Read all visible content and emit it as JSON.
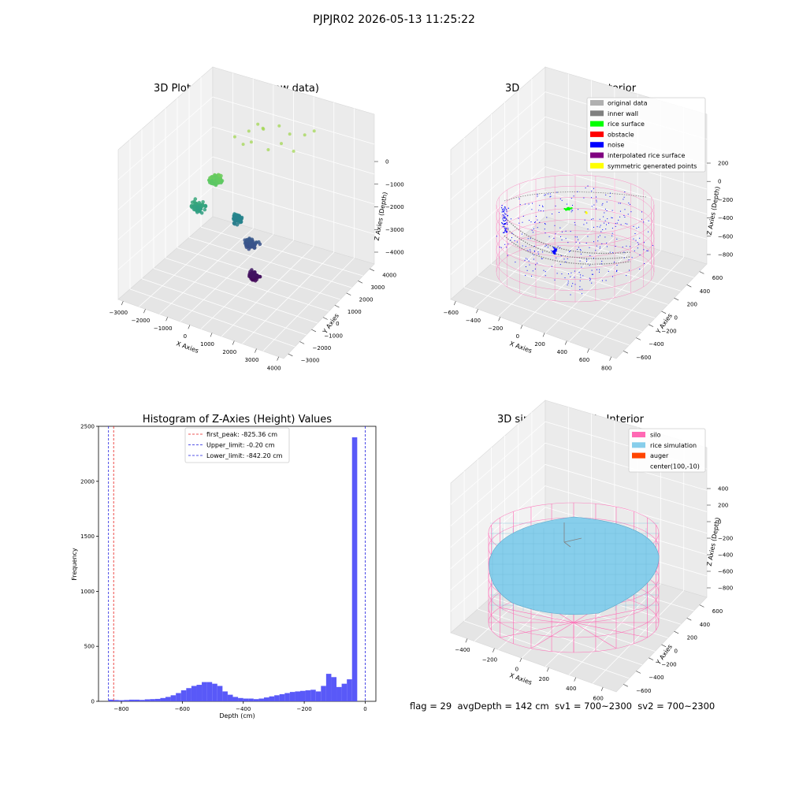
{
  "figure": {
    "suptitle": "PJPJR02 2026-05-13 11:25:22",
    "stats": {
      "flag": "flag = 29",
      "avg_depth": "avgDepth = 142 cm",
      "sv1": "sv1 = 700~2300",
      "sv2": "sv2 = 700~2300"
    },
    "colors": {
      "hist_bar": "#5050f8",
      "first_peak_line": "#e8201c",
      "limit_lines": "#1c1ce0",
      "silo_wire": "#ff69b4",
      "rice_surface": "#87ceeb",
      "noise": "#0000ff",
      "original_data": "#b0b0b0",
      "inner_wall": "#808080",
      "rice_surface_class": "#00ff00",
      "obstacle": "#ff0000",
      "interpolated": "#800080",
      "symmetric": "#ffff00",
      "auger": "#ff4500"
    }
  },
  "chart_data": [
    {
      "id": "raw",
      "type": "scatter",
      "projection": "3d",
      "title": "3D Plot of Silo Interior(row data)",
      "xlabel": "X Axies",
      "ylabel": "Y Axies",
      "zlabel": "Z Axies (Depth)",
      "x_ticks": [
        "−3000",
        "−2000",
        "−1000",
        "0",
        "1000",
        "2000",
        "3000",
        "4000"
      ],
      "y_ticks": [
        "−3000",
        "−2000",
        "−1000",
        "0",
        "1000",
        "2000",
        "3000",
        "4000"
      ],
      "z_ticks": [
        "0",
        "−1000",
        "−2000",
        "−3000",
        "−4000"
      ],
      "colormap": "viridis",
      "clusters": [
        {
          "x": -300,
          "y": -500,
          "z": -1100,
          "spread": 300,
          "n": 120
        },
        {
          "x": -800,
          "y": -900,
          "z": -1900,
          "spread": 350,
          "n": 90
        },
        {
          "x": 100,
          "y": 400,
          "z": -2500,
          "spread": 300,
          "n": 60
        },
        {
          "x": 400,
          "y": 800,
          "z": -3300,
          "spread": 350,
          "n": 60
        },
        {
          "x": 500,
          "y": 900,
          "z": -4300,
          "spread": 250,
          "n": 70
        }
      ]
    },
    {
      "id": "classify",
      "type": "scatter",
      "projection": "3d",
      "title": "3D classify of Silo Interior",
      "xlabel": "X Axies",
      "ylabel": "Y Axies",
      "zlabel": "Z Axies (Depth)",
      "x_ticks": [
        "−600",
        "−400",
        "−200",
        "0",
        "200",
        "400",
        "600",
        "800"
      ],
      "y_ticks": [
        "−600",
        "−400",
        "−200",
        "0",
        "200",
        "400",
        "600"
      ],
      "z_ticks": [
        "200",
        "0",
        "−200",
        "−400",
        "−600",
        "−800"
      ],
      "legend": [
        "original data",
        "inner wall",
        "rice surface",
        "obstacle",
        "noise",
        "interpolated rice surface",
        "symmetric generated points"
      ]
    },
    {
      "id": "histogram",
      "type": "bar",
      "title": "Histogram of Z-Axies (Height) Values",
      "xlabel": "Depth (cm)",
      "ylabel": "Frequency",
      "xlim": [
        -875,
        35
      ],
      "ylim": [
        0,
        2500
      ],
      "x_ticks": [
        "−800",
        "−600",
        "−400",
        "−200",
        "0"
      ],
      "x_tick_values": [
        -800,
        -600,
        -400,
        -200,
        0
      ],
      "y_ticks": [
        "0",
        "500",
        "1000",
        "1500",
        "2000",
        "2500"
      ],
      "bin_width": 17,
      "bin_start": -842.2,
      "values": [
        15,
        12,
        10,
        12,
        15,
        15,
        13,
        18,
        20,
        22,
        30,
        40,
        55,
        75,
        100,
        120,
        140,
        150,
        175,
        175,
        160,
        140,
        90,
        60,
        40,
        30,
        25,
        25,
        20,
        25,
        35,
        45,
        55,
        65,
        75,
        85,
        90,
        95,
        100,
        105,
        90,
        140,
        250,
        220,
        130,
        160,
        200,
        2400
      ],
      "lines": [
        {
          "label": "first_peak: -825.36 cm",
          "x": -825.36,
          "style": "first_peak"
        },
        {
          "label": "Upper_limit: -0.20 cm",
          "x": -0.2,
          "style": "limit"
        },
        {
          "label": "Lower_limit: -842.20 cm",
          "x": -842.2,
          "style": "limit"
        }
      ]
    },
    {
      "id": "simulation",
      "type": "surface",
      "projection": "3d",
      "title": "3D simulation of Silo Interior",
      "xlabel": "X Axies",
      "ylabel": "Y Axies",
      "zlabel": "Z Axies (Depth)",
      "x_ticks": [
        "−400",
        "−200",
        "0",
        "200",
        "400",
        "600"
      ],
      "y_ticks": [
        "−600",
        "−400",
        "−200",
        "0",
        "200",
        "400",
        "600"
      ],
      "z_ticks": [
        "400",
        "200",
        "0",
        "−200",
        "−400",
        "−600",
        "−800"
      ],
      "legend": [
        "silo",
        "rice simulation",
        "auger",
        "center(100,-10)"
      ],
      "silo_radius": 650,
      "rice_surface_depth": -142
    }
  ]
}
